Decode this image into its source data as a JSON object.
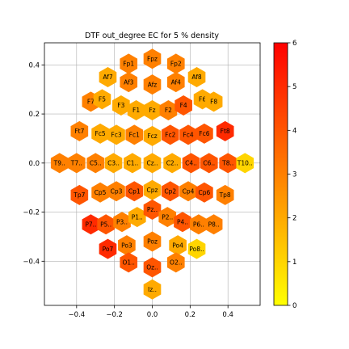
{
  "chart_data": {
    "type": "heatmap",
    "subtype": "hexbin-topomap",
    "title": "DTF out_degree EC for 5 % density",
    "xlabel": "",
    "ylabel": "",
    "xlim": [
      -0.57,
      0.57
    ],
    "ylim": [
      -0.58,
      0.49
    ],
    "xticks": [
      -0.4,
      -0.2,
      0.0,
      0.2,
      0.4
    ],
    "xtick_labels": [
      "−0.4",
      "−0.2",
      "0.0",
      "0.2",
      "0.4"
    ],
    "yticks": [
      -0.4,
      -0.2,
      0.0,
      0.2,
      0.4
    ],
    "ytick_labels": [
      "−0.4",
      "−0.2",
      "0.0",
      "0.2",
      "0.4"
    ],
    "grid": true,
    "colormap": "autumn_r",
    "colorbar": {
      "range": [
        0,
        6
      ],
      "ticks": [
        0,
        1,
        2,
        3,
        4,
        5,
        6
      ],
      "low_color": "#ffff00",
      "high_color": "#ff0000"
    },
    "electrodes": [
      {
        "label": "Fpz",
        "x": 0.0,
        "y": 0.425,
        "value": 3
      },
      {
        "label": "Fp1",
        "x": -0.125,
        "y": 0.405,
        "value": 3
      },
      {
        "label": "Fp2",
        "x": 0.125,
        "y": 0.405,
        "value": 3
      },
      {
        "label": "Af7",
        "x": -0.235,
        "y": 0.35,
        "value": 2
      },
      {
        "label": "Af8",
        "x": 0.235,
        "y": 0.35,
        "value": 2
      },
      {
        "label": "Af3",
        "x": -0.125,
        "y": 0.33,
        "value": 3
      },
      {
        "label": "Afz",
        "x": 0.0,
        "y": 0.32,
        "value": 3
      },
      {
        "label": "Af4",
        "x": 0.125,
        "y": 0.33,
        "value": 3
      },
      {
        "label": "F7",
        "x": -0.325,
        "y": 0.25,
        "value": 3
      },
      {
        "label": "F5",
        "x": -0.265,
        "y": 0.26,
        "value": 2
      },
      {
        "label": "F3",
        "x": -0.165,
        "y": 0.235,
        "value": 2
      },
      {
        "label": "F1",
        "x": -0.085,
        "y": 0.215,
        "value": 2
      },
      {
        "label": "Fz",
        "x": 0.0,
        "y": 0.215,
        "value": 2
      },
      {
        "label": "F2",
        "x": 0.085,
        "y": 0.215,
        "value": 3
      },
      {
        "label": "F4",
        "x": 0.165,
        "y": 0.235,
        "value": 4
      },
      {
        "label": "F6",
        "x": 0.265,
        "y": 0.26,
        "value": 2
      },
      {
        "label": "F8",
        "x": 0.325,
        "y": 0.25,
        "value": 2
      },
      {
        "label": "Ft7",
        "x": -0.385,
        "y": 0.13,
        "value": 3
      },
      {
        "label": "Fc5",
        "x": -0.275,
        "y": 0.12,
        "value": 2
      },
      {
        "label": "Fc3",
        "x": -0.19,
        "y": 0.115,
        "value": 2
      },
      {
        "label": "Fc1",
        "x": -0.095,
        "y": 0.115,
        "value": 3
      },
      {
        "label": "Fcz",
        "x": 0.0,
        "y": 0.11,
        "value": 2
      },
      {
        "label": "Fc2",
        "x": 0.095,
        "y": 0.115,
        "value": 4
      },
      {
        "label": "Fc4",
        "x": 0.19,
        "y": 0.115,
        "value": 4
      },
      {
        "label": "Fc6",
        "x": 0.275,
        "y": 0.12,
        "value": 4
      },
      {
        "label": "Ft8",
        "x": 0.385,
        "y": 0.13,
        "value": 5
      },
      {
        "label": "T9..",
        "x": -0.49,
        "y": 0.0,
        "value": 3
      },
      {
        "label": "T7..",
        "x": -0.4,
        "y": 0.0,
        "value": 3
      },
      {
        "label": "C5..",
        "x": -0.3,
        "y": 0.0,
        "value": 3
      },
      {
        "label": "C3..",
        "x": -0.205,
        "y": 0.0,
        "value": 2
      },
      {
        "label": "C1..",
        "x": -0.105,
        "y": 0.0,
        "value": 2
      },
      {
        "label": "Cz..",
        "x": 0.0,
        "y": 0.0,
        "value": 2
      },
      {
        "label": "C2..",
        "x": 0.105,
        "y": 0.0,
        "value": 2
      },
      {
        "label": "C4..",
        "x": 0.205,
        "y": 0.0,
        "value": 4
      },
      {
        "label": "C6..",
        "x": 0.3,
        "y": 0.0,
        "value": 4
      },
      {
        "label": "T8..",
        "x": 0.4,
        "y": 0.0,
        "value": 4
      },
      {
        "label": "T10..",
        "x": 0.49,
        "y": 0.0,
        "value": 1
      },
      {
        "label": "Tp7",
        "x": -0.385,
        "y": -0.13,
        "value": 4
      },
      {
        "label": "Cp5",
        "x": -0.275,
        "y": -0.12,
        "value": 3
      },
      {
        "label": "Cp3",
        "x": -0.19,
        "y": -0.115,
        "value": 3
      },
      {
        "label": "Cp1",
        "x": -0.095,
        "y": -0.115,
        "value": 4
      },
      {
        "label": "Cpz",
        "x": 0.0,
        "y": -0.11,
        "value": 2
      },
      {
        "label": "Cp2",
        "x": 0.095,
        "y": -0.115,
        "value": 4
      },
      {
        "label": "Cp4",
        "x": 0.19,
        "y": -0.115,
        "value": 3
      },
      {
        "label": "Cp6",
        "x": 0.275,
        "y": -0.12,
        "value": 4
      },
      {
        "label": "Tp8",
        "x": 0.385,
        "y": -0.13,
        "value": 3
      },
      {
        "label": "P7..",
        "x": -0.325,
        "y": -0.25,
        "value": 5
      },
      {
        "label": "P5..",
        "x": -0.245,
        "y": -0.25,
        "value": 4
      },
      {
        "label": "P3..",
        "x": -0.16,
        "y": -0.24,
        "value": 3
      },
      {
        "label": "P1..",
        "x": -0.08,
        "y": -0.22,
        "value": 2
      },
      {
        "label": "Pz..",
        "x": 0.0,
        "y": -0.19,
        "value": 4
      },
      {
        "label": "P2..",
        "x": 0.08,
        "y": -0.22,
        "value": 3
      },
      {
        "label": "P4..",
        "x": 0.16,
        "y": -0.24,
        "value": 4
      },
      {
        "label": "P6..",
        "x": 0.245,
        "y": -0.25,
        "value": 3
      },
      {
        "label": "P8..",
        "x": 0.325,
        "y": -0.25,
        "value": 3
      },
      {
        "label": "Po7",
        "x": -0.235,
        "y": -0.35,
        "value": 5
      },
      {
        "label": "Po3",
        "x": -0.135,
        "y": -0.335,
        "value": 3
      },
      {
        "label": "Poz",
        "x": 0.0,
        "y": -0.32,
        "value": 3
      },
      {
        "label": "Po4",
        "x": 0.135,
        "y": -0.335,
        "value": 2
      },
      {
        "label": "Po8..",
        "x": 0.235,
        "y": -0.35,
        "value": 1
      },
      {
        "label": "O1..",
        "x": -0.125,
        "y": -0.405,
        "value": 4
      },
      {
        "label": "Oz..",
        "x": 0.0,
        "y": -0.425,
        "value": 4
      },
      {
        "label": "O2..",
        "x": 0.125,
        "y": -0.405,
        "value": 3
      },
      {
        "label": "Iz..",
        "x": 0.0,
        "y": -0.515,
        "value": 2
      }
    ]
  }
}
